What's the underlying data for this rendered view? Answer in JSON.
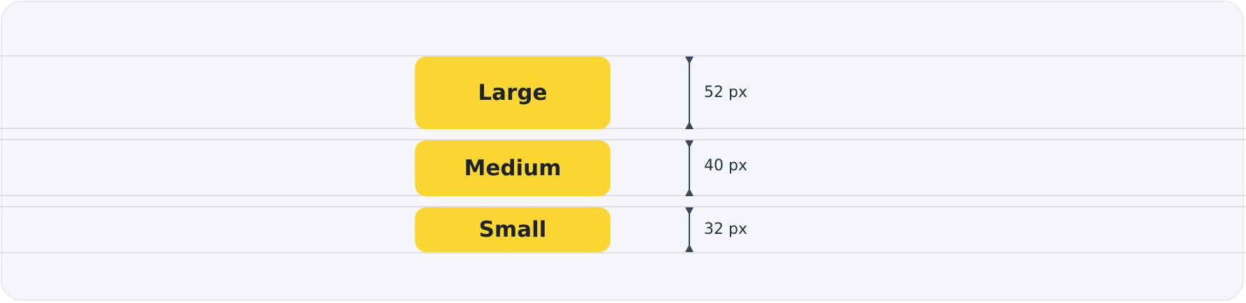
{
  "buttons": [
    {
      "label": "Large"
    },
    {
      "label": "Medium"
    },
    {
      "label": "Small"
    }
  ],
  "measurements": [
    {
      "label": "52 px"
    },
    {
      "label": "40 px"
    },
    {
      "label": "32 px"
    }
  ],
  "colors": {
    "button_fill": "#fcd733",
    "button_text": "#1e2329",
    "guide_line": "#dcdfe4",
    "measure_line": "#3b4656",
    "background": "#f6f7fa"
  }
}
